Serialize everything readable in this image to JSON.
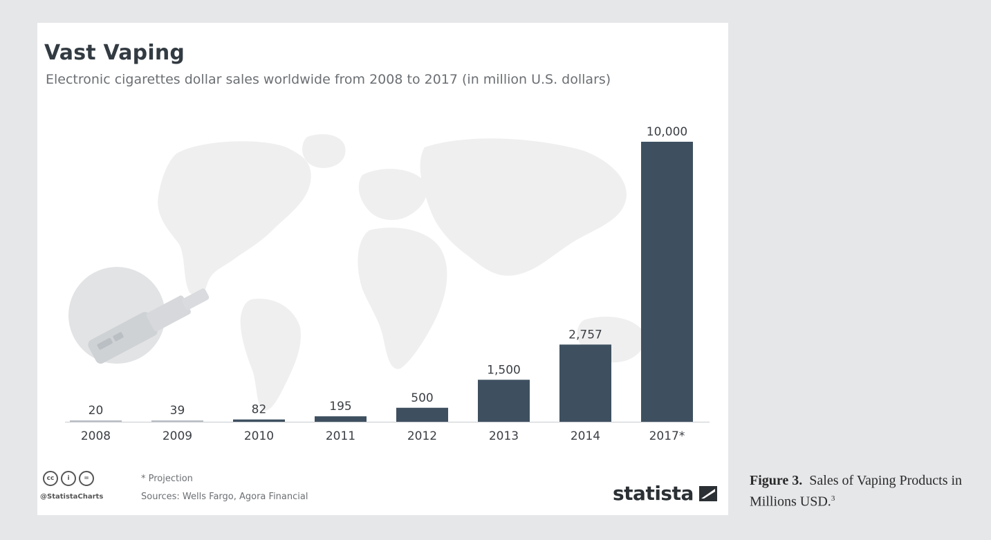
{
  "header": {
    "title": "Vast Vaping",
    "subtitle": "Electronic cigarettes dollar sales worldwide from 2008 to 2017 (in million U.S. dollars)"
  },
  "chart_data": {
    "type": "bar",
    "title": "Vast Vaping",
    "subtitle": "Electronic cigarettes dollar sales worldwide from 2008 to 2017 (in million U.S. dollars)",
    "categories": [
      "2008",
      "2009",
      "2010",
      "2011",
      "2012",
      "2013",
      "2014",
      "2017*"
    ],
    "values": [
      20,
      39,
      82,
      195,
      500,
      1500,
      2757,
      10000
    ],
    "value_labels": [
      "20",
      "39",
      "82",
      "195",
      "500",
      "1,500",
      "2,757",
      "10,000"
    ],
    "xlabel": "",
    "ylabel": "",
    "ylim": [
      0,
      10000
    ],
    "grid": false,
    "legend": "none",
    "bar_color": "#3e5060"
  },
  "footer": {
    "handle": "@StatistaCharts",
    "note": "* Projection",
    "sources": "Sources: Wells Fargo, Agora Financial",
    "brand": "statista",
    "cc_icons": [
      "cc-icon",
      "by-icon",
      "nd-icon"
    ]
  },
  "caption": {
    "label": "Figure 3.",
    "text": "Sales of Vaping Products in Millions USD.",
    "ref": "3"
  }
}
